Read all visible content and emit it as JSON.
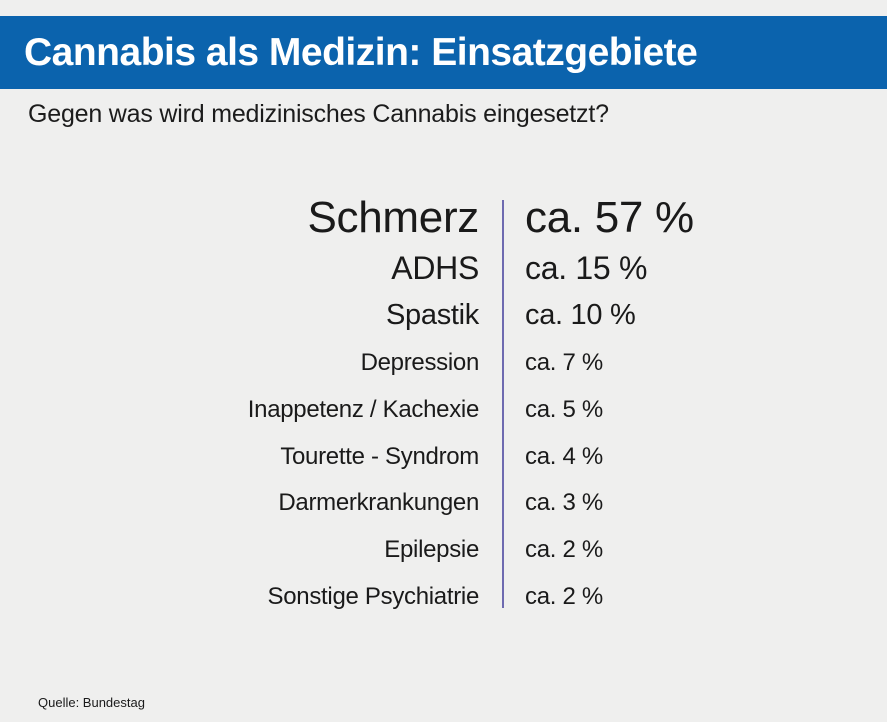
{
  "header": {
    "title": "Cannabis als Medizin: Einsatzgebiete"
  },
  "subtitle": "Gegen was wird medizinisches Cannabis eingesetzt?",
  "rows": [
    {
      "label": "Schmerz",
      "value": "ca. 57 %"
    },
    {
      "label": "ADHS",
      "value": "ca. 15 %"
    },
    {
      "label": "Spastik",
      "value": "ca. 10 %"
    },
    {
      "label": "Depression",
      "value": "ca. 7 %"
    },
    {
      "label": "Inappetenz / Kachexie",
      "value": "ca. 5 %"
    },
    {
      "label": "Tourette - Syndrom",
      "value": "ca. 4 %"
    },
    {
      "label": "Darmerkrankungen",
      "value": "ca. 3 %"
    },
    {
      "label": "Epilepsie",
      "value": "ca. 2 %"
    },
    {
      "label": "Sonstige Psychiatrie",
      "value": "ca. 2 %"
    }
  ],
  "source": "Quelle: Bundestag",
  "colors": {
    "header_background": "#0b63ad",
    "header_text": "#ffffff",
    "divider": "#6e6ab0",
    "background": "#efefee"
  }
}
